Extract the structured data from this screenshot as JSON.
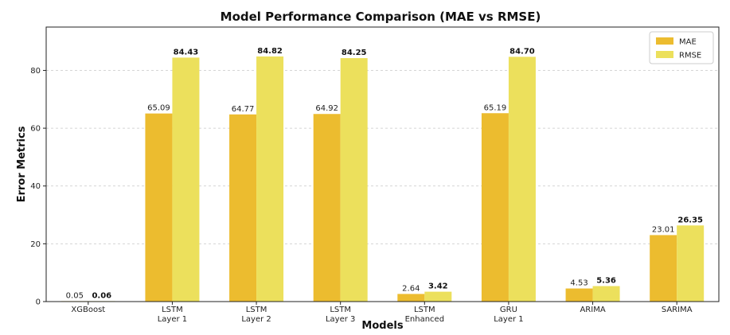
{
  "chart_data": {
    "type": "bar",
    "title": "Model Performance Comparison (MAE vs RMSE)",
    "xlabel": "Models",
    "ylabel": "Error Metrics",
    "ylim": [
      0,
      95
    ],
    "yticks": [
      0,
      20,
      40,
      60,
      80
    ],
    "grid": true,
    "legend_position": "top-right",
    "categories": [
      [
        "XGBoost"
      ],
      [
        "LSTM",
        "Layer 1"
      ],
      [
        "LSTM",
        "Layer 2"
      ],
      [
        "LSTM",
        "Layer 3"
      ],
      [
        "LSTM",
        "Enhanced"
      ],
      [
        "GRU",
        "Layer 1"
      ],
      [
        "ARIMA"
      ],
      [
        "SARIMA"
      ]
    ],
    "series": [
      {
        "name": "MAE",
        "color": "#ecbc2f",
        "values": [
          0.05,
          65.09,
          64.77,
          64.92,
          2.64,
          65.19,
          4.53,
          23.01
        ],
        "labels": [
          "0.05",
          "65.09",
          "64.77",
          "64.92",
          "2.64",
          "65.19",
          "4.53",
          "23.01"
        ],
        "label_weight": "normal"
      },
      {
        "name": "RMSE",
        "color": "#ece05c",
        "values": [
          0.06,
          84.43,
          84.82,
          84.25,
          3.42,
          84.7,
          5.36,
          26.35
        ],
        "labels": [
          "0.06",
          "84.43",
          "84.82",
          "84.25",
          "3.42",
          "84.70",
          "5.36",
          "26.35"
        ],
        "label_weight": "bold"
      }
    ]
  }
}
